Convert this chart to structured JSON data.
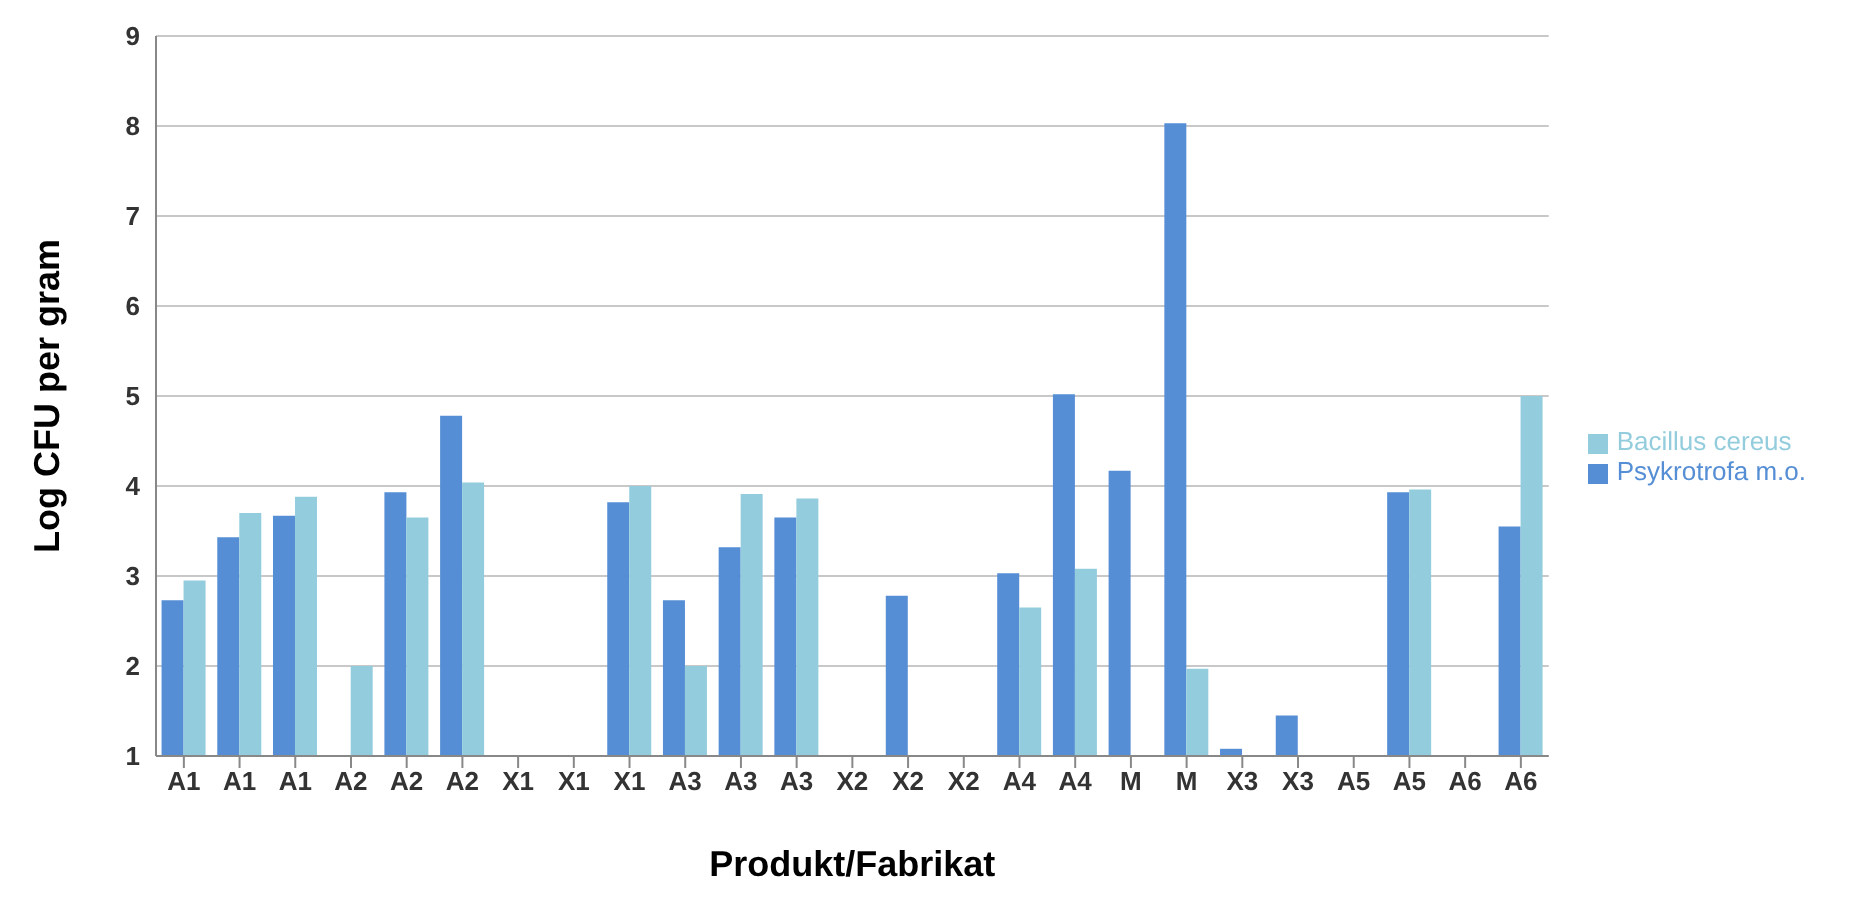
{
  "chart_data": {
    "type": "bar",
    "xlabel": "Produkt/Fabrikat",
    "ylabel": "Log CFU per gram",
    "categories": [
      "A1",
      "A1",
      "A1",
      "A2",
      "A2",
      "A2",
      "X1",
      "X1",
      "X1",
      "A3",
      "A3",
      "A3",
      "X2",
      "X2",
      "X2",
      "A4",
      "A4",
      "M",
      "M",
      "X3",
      "X3",
      "A5",
      "A5",
      "A6",
      "A6"
    ],
    "series": [
      {
        "name": "Psykrotrofa m.o.",
        "color": "#558ed5",
        "values": [
          2.73,
          3.43,
          3.67,
          null,
          3.93,
          4.78,
          null,
          null,
          3.82,
          2.73,
          3.32,
          3.65,
          null,
          2.78,
          null,
          3.03,
          5.02,
          4.17,
          8.03,
          1.08,
          1.45,
          null,
          3.93,
          null,
          3.55
        ]
      },
      {
        "name": "Bacillus cereus",
        "color": "#93cddd",
        "values": [
          2.95,
          3.7,
          3.88,
          2.0,
          3.65,
          4.04,
          null,
          null,
          4.0,
          2.0,
          3.91,
          3.86,
          null,
          null,
          null,
          2.65,
          3.08,
          null,
          1.97,
          null,
          null,
          null,
          3.96,
          null,
          5.0
        ]
      }
    ],
    "ylim": [
      1,
      9
    ],
    "yticks": [
      1,
      2,
      3,
      4,
      5,
      6,
      7,
      8,
      9
    ],
    "grid": "y",
    "legend": "right"
  }
}
